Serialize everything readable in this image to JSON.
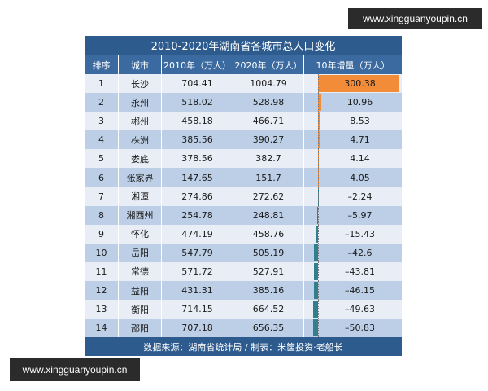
{
  "watermark": "www.xingguanyoupin.cn",
  "title": "2010-2020年湖南省各城市总人口变化",
  "headers": [
    "排序",
    "城市",
    "2010年（万人）",
    "2020年（万人）",
    "10年增量（万人）"
  ],
  "rows": [
    [
      "1",
      "长沙",
      "704.41",
      "1004.79",
      300.38
    ],
    [
      "2",
      "永州",
      "518.02",
      "528.98",
      10.96
    ],
    [
      "3",
      "郴州",
      "458.18",
      "466.71",
      8.53
    ],
    [
      "4",
      "株洲",
      "385.56",
      "390.27",
      4.71
    ],
    [
      "5",
      "娄底",
      "378.56",
      "382.7",
      4.14
    ],
    [
      "6",
      "张家界",
      "147.65",
      "151.7",
      4.05
    ],
    [
      "7",
      "湘潭",
      "274.86",
      "272.62",
      -2.24
    ],
    [
      "8",
      "湘西州",
      "254.78",
      "248.81",
      -5.97
    ],
    [
      "9",
      "怀化",
      "474.19",
      "458.76",
      -15.43
    ],
    [
      "10",
      "岳阳",
      "547.79",
      "505.19",
      -42.6
    ],
    [
      "11",
      "常德",
      "571.72",
      "527.91",
      -43.81
    ],
    [
      "12",
      "益阳",
      "431.31",
      "385.16",
      -46.15
    ],
    [
      "13",
      "衡阳",
      "714.15",
      "664.52",
      -49.63
    ],
    [
      "14",
      "邵阳",
      "707.18",
      "656.35",
      -50.83
    ]
  ],
  "footer": "数据来源：湖南省统计局 / 制表：米筐投资·老船长",
  "colors": {
    "positive": "#f28c38",
    "negative": "#2f7f8f",
    "header": "#2e5b8e"
  }
}
